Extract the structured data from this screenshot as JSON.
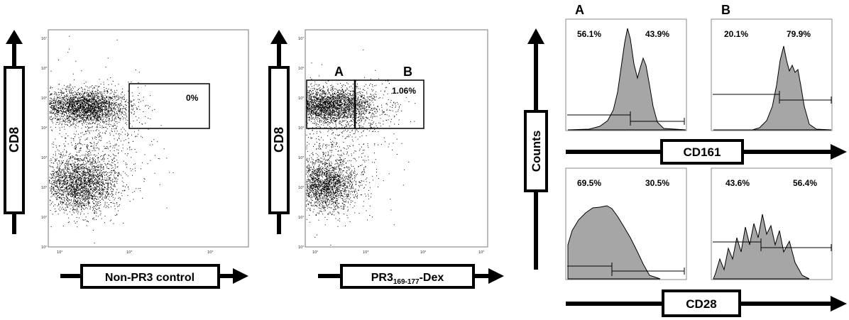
{
  "dotplots": [
    {
      "id": "left",
      "y_axis_label": "CD8",
      "x_axis_label": "Non-PR3 control",
      "x_ticks": [
        "10²",
        "10³",
        "10⁴"
      ],
      "y_ticks": [
        "10⁰",
        "10¹",
        "10²",
        "10³",
        "10⁴",
        "10⁵",
        "10⁶",
        "10⁷"
      ],
      "gate_value": "0%"
    },
    {
      "id": "middle",
      "y_axis_label": "CD8",
      "x_axis_label_main": "PR3",
      "x_axis_label_sub": "169-177",
      "x_axis_label_tail": "-Dex",
      "x_ticks": [
        "10²",
        "10³",
        "10⁴",
        "10⁵"
      ],
      "y_ticks": [
        "10⁰",
        "10¹",
        "10²",
        "10³",
        "10⁴",
        "10⁵",
        "10⁶",
        "10⁷"
      ],
      "gate_a_label": "A",
      "gate_b_label": "B",
      "gate_value": "1.06%"
    }
  ],
  "histograms": {
    "column_labels": [
      "A",
      "B"
    ],
    "y_axis_label": "Counts",
    "row1_axis_label": "CD161",
    "row2_axis_label": "CD28",
    "panels": [
      {
        "id": "A-CD161",
        "left_pct": "56.1%",
        "right_pct": "43.9%"
      },
      {
        "id": "B-CD161",
        "left_pct": "20.1%",
        "right_pct": "79.9%"
      },
      {
        "id": "A-CD28",
        "left_pct": "69.5%",
        "right_pct": "30.5%"
      },
      {
        "id": "B-CD28",
        "left_pct": "43.6%",
        "right_pct": "56.4%"
      }
    ]
  },
  "colors": {
    "dots": "#000000",
    "histogram_fill": "#a6a6a6",
    "frame": "#000000"
  }
}
